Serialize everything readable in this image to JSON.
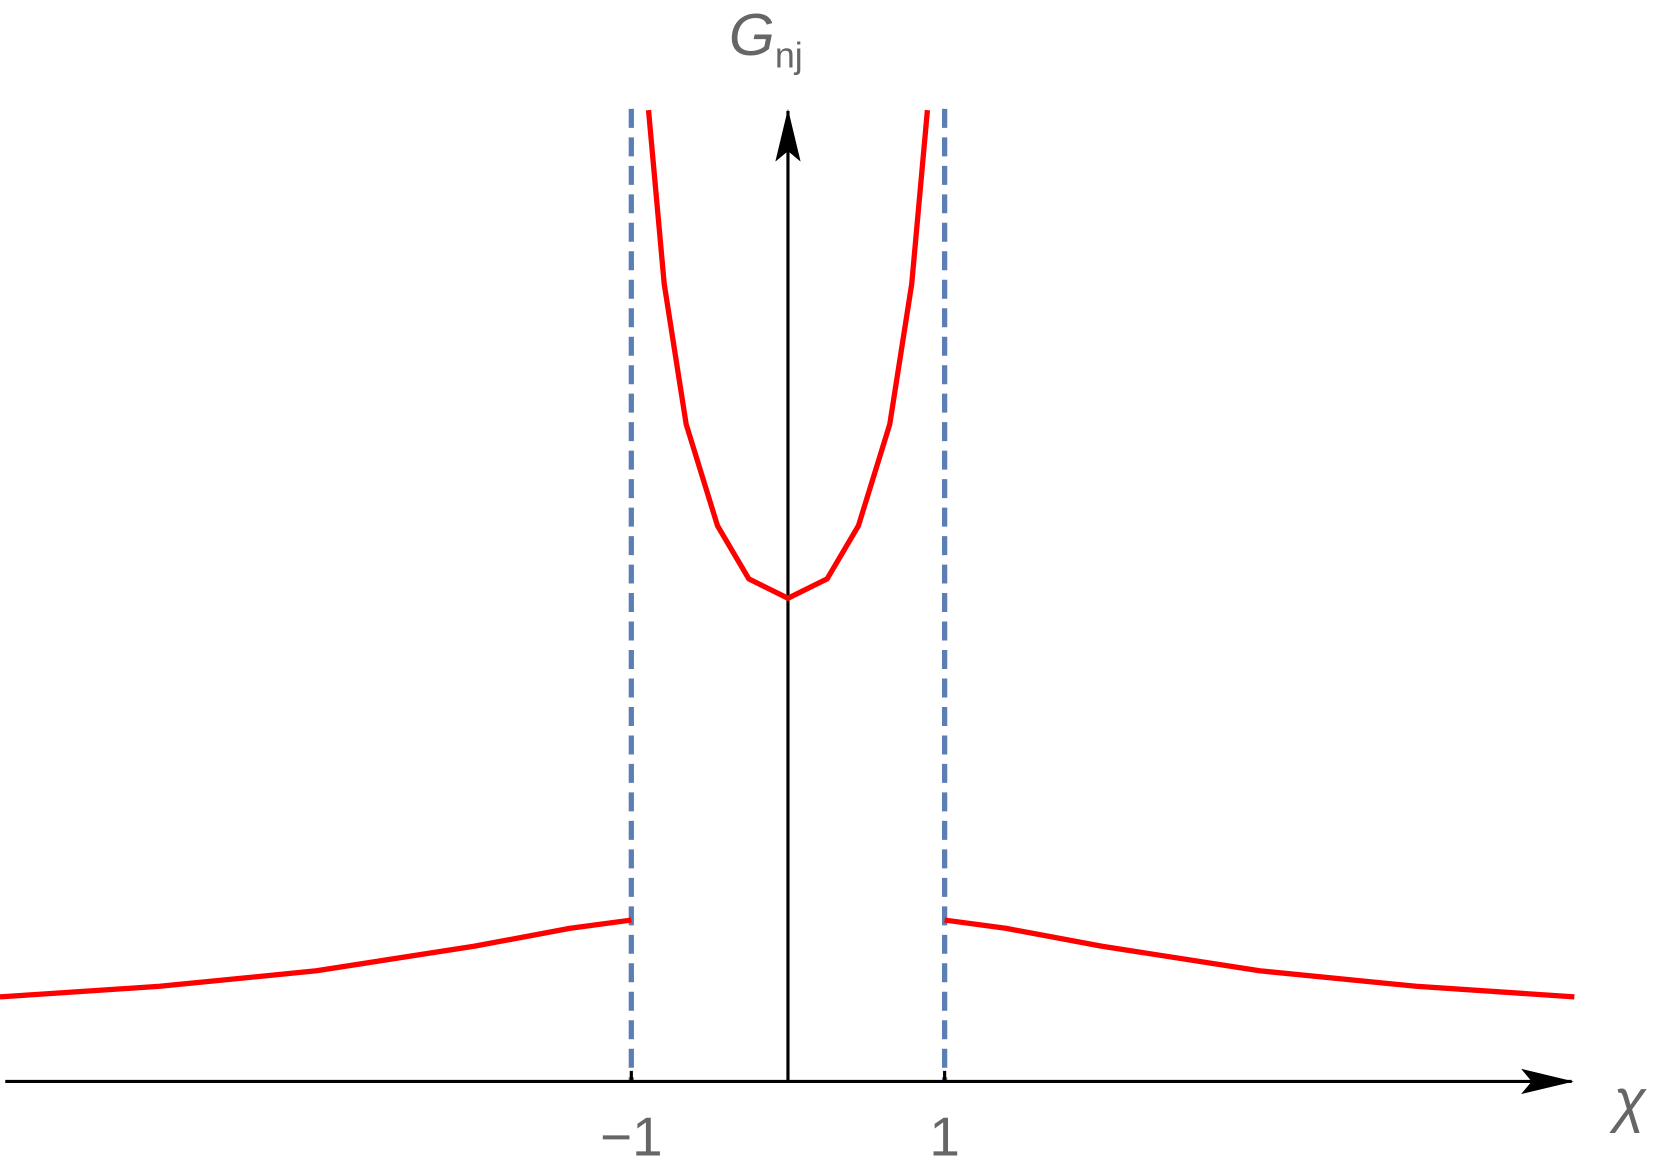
{
  "chart_data": {
    "type": "line",
    "ylabel": "G",
    "ylabel_subscript": "nj",
    "xlabel": "χ",
    "x": [
      -5.03,
      -4.01,
      -3.01,
      -2.0,
      -1.39,
      -1.0,
      null,
      -0.89,
      -0.79,
      -0.65,
      -0.45,
      -0.25,
      0,
      0.25,
      0.45,
      0.65,
      0.79,
      0.89,
      null,
      1.0,
      1.39,
      2.0,
      3.01,
      4.01,
      5.02
    ],
    "values": [
      0.175,
      0.197,
      0.229,
      0.28,
      0.317,
      0.334,
      null,
      2.01,
      1.65,
      1.36,
      1.15,
      1.04,
      1.0,
      1.04,
      1.15,
      1.36,
      1.65,
      2.01,
      null,
      0.334,
      0.317,
      0.28,
      0.229,
      0.197,
      0.175
    ],
    "color": "#ff0000",
    "asymptotes": [
      -1,
      1
    ],
    "asymptote_color": "#5b7fb5",
    "xlim": [
      -5.03,
      5.03
    ],
    "ylim": [
      0,
      2.1
    ],
    "xticks": [
      {
        "value": -1,
        "label": "−1"
      },
      1
    ]
  }
}
